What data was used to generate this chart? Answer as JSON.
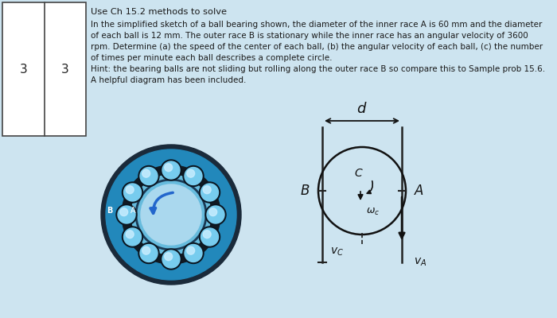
{
  "bg_color": "#cde4f0",
  "text_color": "#1a1a1a",
  "title_text": "Use Ch 15.2 methods to solve",
  "body_lines": [
    "In the simplified sketch of a ball bearing shown, the diameter of the inner race A is 60 mm and the diameter",
    "of each ball is 12 mm. The outer race B is stationary while the inner race has an angular velocity of 3600",
    "rpm. Determine (a) the speed of the center of each ball, (b) the angular velocity of each ball, (c) the number",
    "of times per minute each ball describes a complete circle.",
    "Hint: the bearing balls are not sliding but rolling along the outer race B so compare this to Sample prob 15.6.",
    "A helpful diagram has been included."
  ],
  "cell1": "3",
  "cell2": "3"
}
